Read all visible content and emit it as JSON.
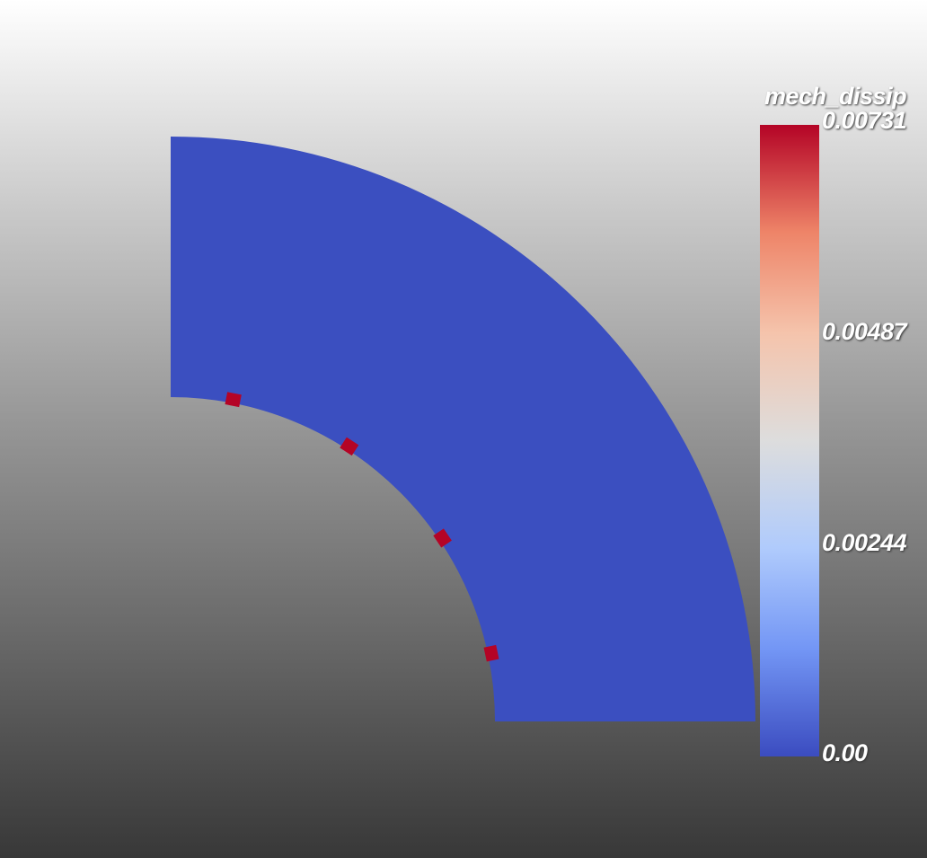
{
  "scalar_bar": {
    "title": "mech_dissip",
    "labels": [
      "0.00731",
      "0.00487",
      "0.00244",
      "0.00"
    ],
    "colormap": "cool-to-warm",
    "colors": [
      "#3b4cc0",
      "#7396f5",
      "#b0cbfc",
      "#dddddd",
      "#f5c4ac",
      "#ee8468",
      "#b40426"
    ]
  },
  "geometry": {
    "shape": "quarter-annulus",
    "fill_color": "#3b4fc0",
    "hotspot_color": "#b40426",
    "hotspots_on_inner_edge": 4
  }
}
